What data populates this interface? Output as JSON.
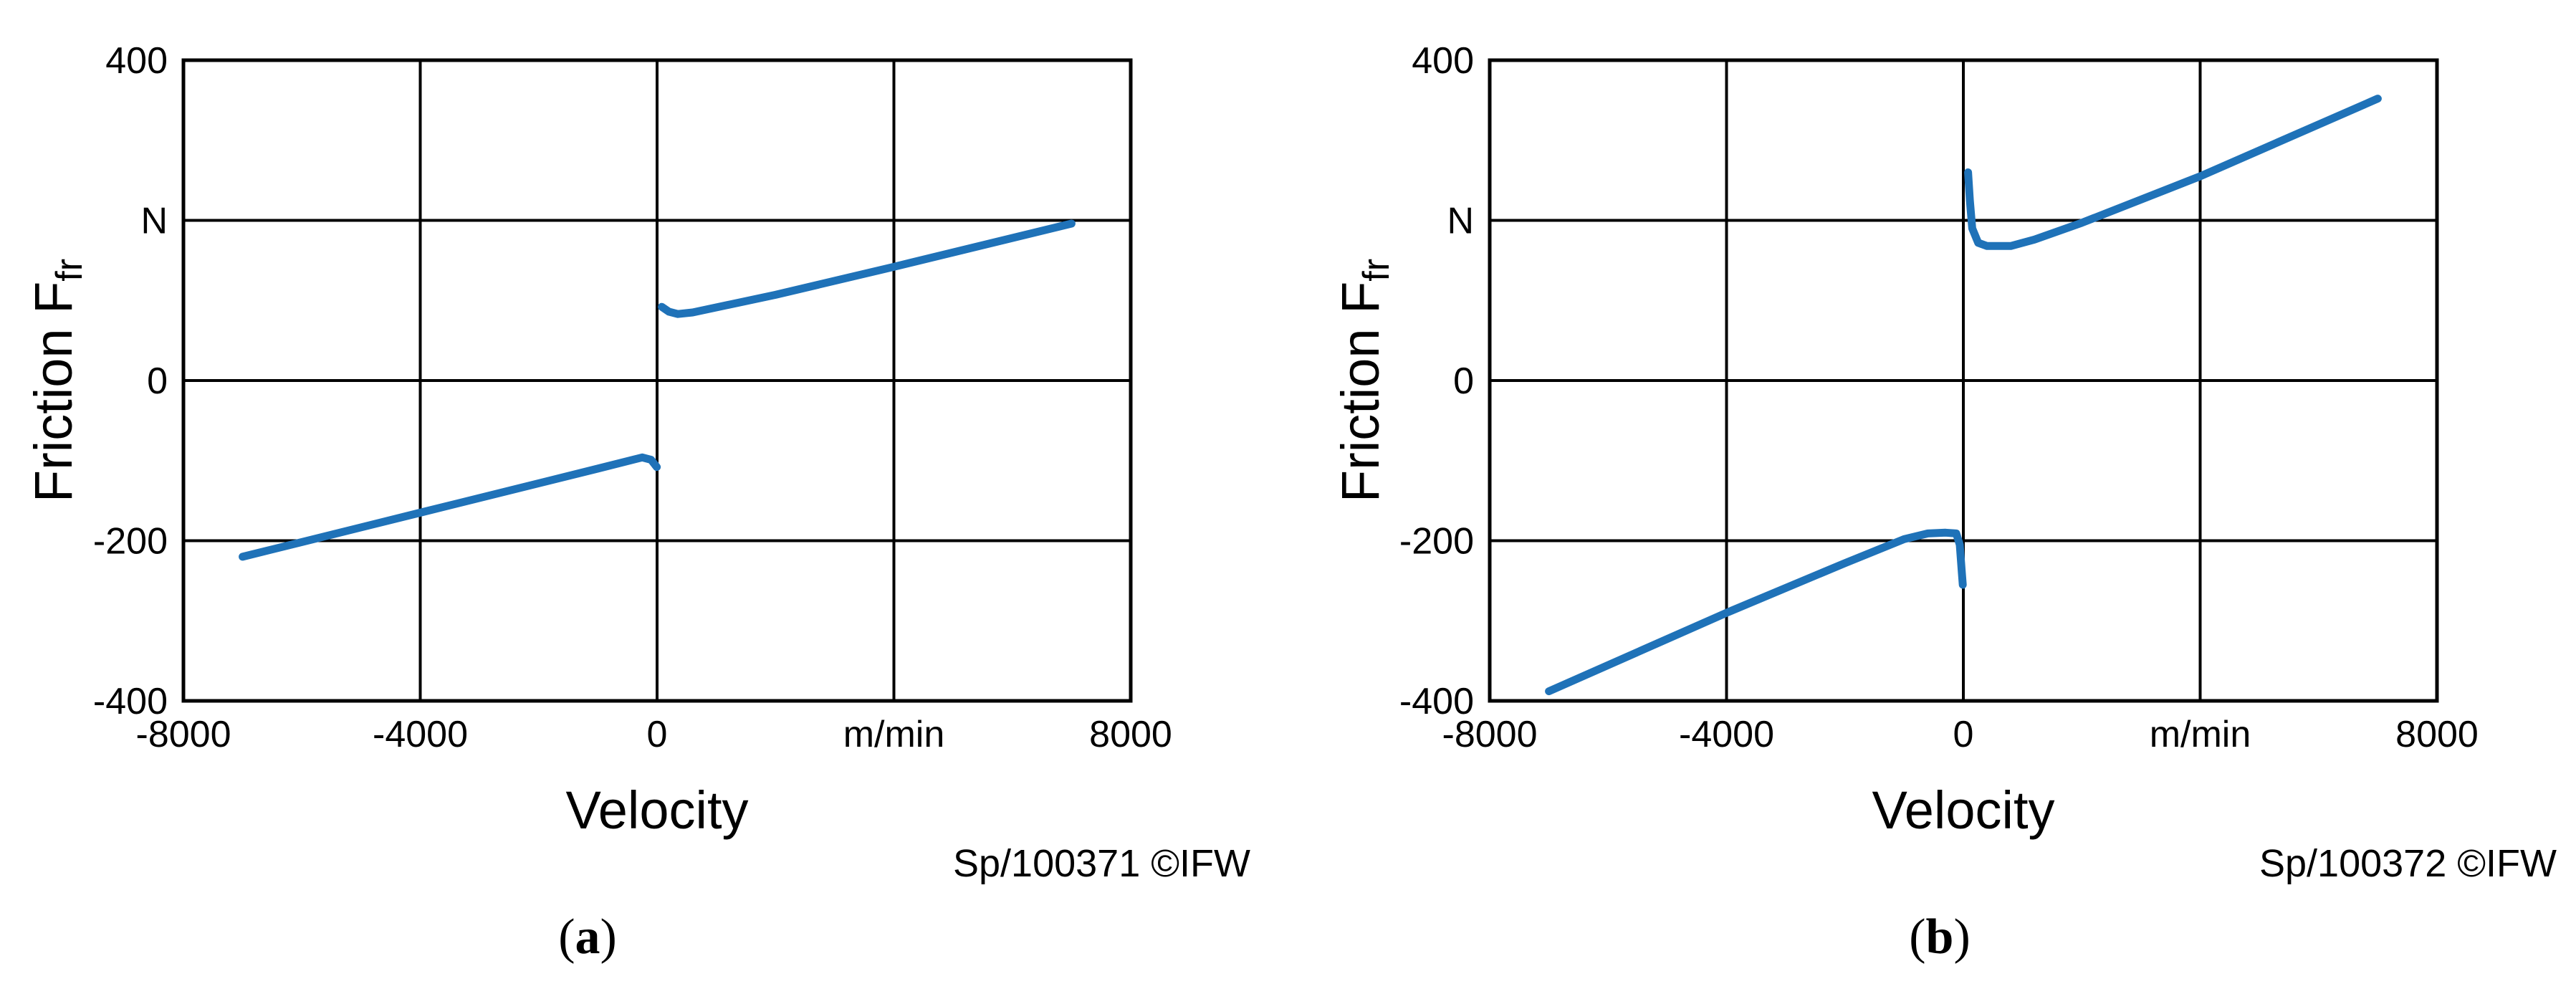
{
  "colors": {
    "series": "#1f72b8",
    "grid": "#000000",
    "text": "#000000"
  },
  "chart_data": [
    {
      "type": "line",
      "panel_label": "a",
      "xlabel": "Velocity",
      "ylabel_main": "Friction F",
      "ylabel_sub": "fr",
      "xlim": [
        -8000,
        8000
      ],
      "ylim": [
        -400,
        400
      ],
      "x_tick_labels": [
        "-8000",
        "-4000",
        "0",
        "m/min",
        "8000"
      ],
      "y_tick_labels": [
        "400",
        "N",
        "0",
        "-200",
        "-400"
      ],
      "grid": true,
      "credit": "Sp/100371 ©IFW",
      "series": [
        {
          "segments": [
            [
              [
                -7000,
                -220
              ],
              [
                -4000,
                -165
              ],
              [
                -1000,
                -110
              ],
              [
                -250,
                -96
              ],
              [
                -100,
                -99
              ],
              [
                -5,
                -108
              ]
            ],
            [
              [
                80,
                92
              ],
              [
                200,
                86
              ],
              [
                350,
                83
              ],
              [
                600,
                85
              ],
              [
                2000,
                107
              ],
              [
                4000,
                142
              ],
              [
                7000,
                196
              ]
            ]
          ]
        }
      ]
    },
    {
      "type": "line",
      "panel_label": "b",
      "xlabel": "Velocity",
      "ylabel_main": "Friction F",
      "ylabel_sub": "fr",
      "xlim": [
        -8000,
        8000
      ],
      "ylim": [
        -400,
        400
      ],
      "x_tick_labels": [
        "-8000",
        "-4000",
        "0",
        "m/min",
        "8000"
      ],
      "y_tick_labels": [
        "400",
        "N",
        "0",
        "-200",
        "-400"
      ],
      "grid": true,
      "credit": "Sp/100372 ©IFW",
      "series": [
        {
          "segments": [
            [
              [
                -7000,
                -388
              ],
              [
                -4000,
                -290
              ],
              [
                -2000,
                -228
              ],
              [
                -1000,
                -198
              ],
              [
                -600,
                -191
              ],
              [
                -300,
                -190
              ],
              [
                -120,
                -191
              ],
              [
                -60,
                -205
              ],
              [
                -25,
                -240
              ],
              [
                -10,
                -255
              ]
            ],
            [
              [
                80,
                260
              ],
              [
                110,
                225
              ],
              [
                150,
                190
              ],
              [
                250,
                172
              ],
              [
                400,
                168
              ],
              [
                800,
                168
              ],
              [
                1200,
                176
              ],
              [
                2000,
                197
              ],
              [
                4000,
                255
              ],
              [
                7000,
                352
              ]
            ]
          ]
        }
      ]
    }
  ]
}
